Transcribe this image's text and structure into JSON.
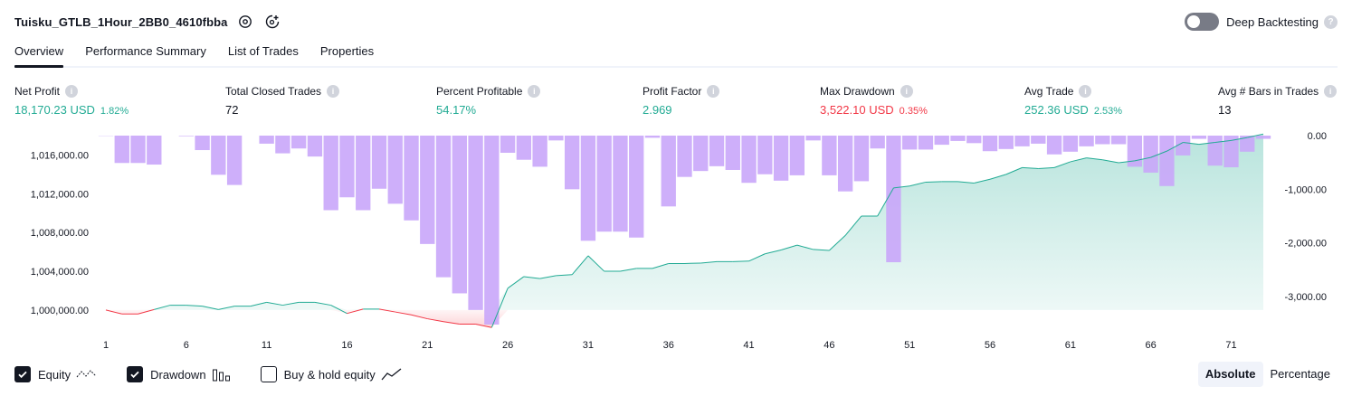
{
  "header": {
    "title": "Tuisku_GTLB_1Hour_2BB0_4610fbba",
    "deep_backtesting_label": "Deep Backtesting",
    "help_glyph": "?"
  },
  "tabs": [
    {
      "label": "Overview",
      "active": true
    },
    {
      "label": "Performance Summary",
      "active": false
    },
    {
      "label": "List of Trades",
      "active": false
    },
    {
      "label": "Properties",
      "active": false
    }
  ],
  "metrics": [
    {
      "label": "Net Profit",
      "value": "18,170.23 USD",
      "sub": "1.82%",
      "color": "#22ab94"
    },
    {
      "label": "Total Closed Trades",
      "value": "72",
      "sub": "",
      "color": "#131722"
    },
    {
      "label": "Percent Profitable",
      "value": "54.17%",
      "sub": "",
      "color": "#22ab94"
    },
    {
      "label": "Profit Factor",
      "value": "2.969",
      "sub": "",
      "color": "#22ab94"
    },
    {
      "label": "Max Drawdown",
      "value": "3,522.10 USD",
      "sub": "0.35%",
      "color": "#f23645"
    },
    {
      "label": "Avg Trade",
      "value": "252.36 USD",
      "sub": "2.53%",
      "color": "#22ab94"
    },
    {
      "label": "Avg # Bars in Trades",
      "value": "13",
      "sub": "",
      "color": "#131722"
    }
  ],
  "chart_data": {
    "type": "area",
    "left_axis": {
      "ticks": [
        1016000,
        1012000,
        1008000,
        1004000,
        1000000
      ],
      "tick_labels": [
        "1,016,000.00",
        "1,012,000.00",
        "1,008,000.00",
        "1,004,000.00",
        "1,000,000.00"
      ],
      "ylim": [
        998500,
        1018000
      ]
    },
    "right_axis": {
      "ticks": [
        0,
        -1000,
        -2000,
        -3000
      ],
      "tick_labels": [
        "0.00",
        "-1,000.00",
        "-2,000.00",
        "-3,000.00"
      ],
      "ylim": [
        -3522.1,
        0
      ]
    },
    "x_ticks": [
      1,
      6,
      11,
      16,
      21,
      26,
      31,
      36,
      41,
      46,
      51,
      56,
      61,
      66,
      71
    ],
    "series": [
      {
        "kind": "equity",
        "values": [
          1000000,
          999600,
          999600,
          1000050,
          1000500,
          1000500,
          1000400,
          1000050,
          1000400,
          1000400,
          1000800,
          1000500,
          1000800,
          1000800,
          1000500,
          999650,
          1000100,
          1000100,
          999800,
          999500,
          999100,
          998800,
          998550,
          998550,
          998200,
          1002250,
          1003450,
          1003250,
          1003550,
          1003650,
          1005600,
          1004000,
          1004000,
          1004300,
          1004300,
          1004800,
          1004800,
          1004850,
          1005000,
          1005000,
          1005050,
          1005800,
          1006200,
          1006700,
          1006250,
          1006150,
          1007700,
          1009700,
          1009700,
          1012600,
          1012800,
          1013200,
          1013250,
          1013250,
          1013100,
          1013500,
          1014000,
          1014700,
          1014600,
          1014700,
          1015300,
          1015700,
          1015500,
          1015200,
          1015400,
          1015750,
          1016400,
          1017300,
          1017100,
          1017300,
          1017500,
          1017800,
          1018170
        ]
      },
      {
        "kind": "drawdown",
        "values": [
          -5,
          -510,
          -510,
          -540,
          0,
          -10,
          -270,
          -730,
          -920,
          0,
          -150,
          -330,
          -240,
          -390,
          -1390,
          -1150,
          -1390,
          -990,
          -1270,
          -1580,
          -2020,
          -2640,
          -2940,
          -3250,
          -3522,
          -320,
          -450,
          -580,
          -90,
          -1000,
          -1960,
          -1790,
          -1790,
          -1900,
          -40,
          -1320,
          -770,
          -660,
          -570,
          -640,
          -880,
          -720,
          -840,
          -740,
          -90,
          -740,
          -1040,
          -850,
          -240,
          -2360,
          -260,
          -260,
          -170,
          -100,
          -140,
          -290,
          -250,
          -200,
          -150,
          -350,
          -300,
          -200,
          -160,
          -160,
          -580,
          -690,
          -940,
          -370,
          -60,
          -560,
          -590,
          -300,
          -60
        ]
      }
    ],
    "legend": [
      {
        "label": "Equity",
        "checked": true
      },
      {
        "label": "Drawdown",
        "checked": true
      },
      {
        "label": "Buy & hold equity",
        "checked": false
      }
    ],
    "colors": {
      "equity_up": "#22ab94",
      "equity_down": "#f23645",
      "drawdown": "#c9a6fa",
      "drawdown_over_equity": "#9c9be0",
      "text": "#131722"
    }
  },
  "mode": {
    "absolute": "Absolute",
    "percentage": "Percentage",
    "selected": "Absolute"
  },
  "icons": {
    "settings": "settings-gear-icon",
    "camera": "snapshot-icon"
  }
}
